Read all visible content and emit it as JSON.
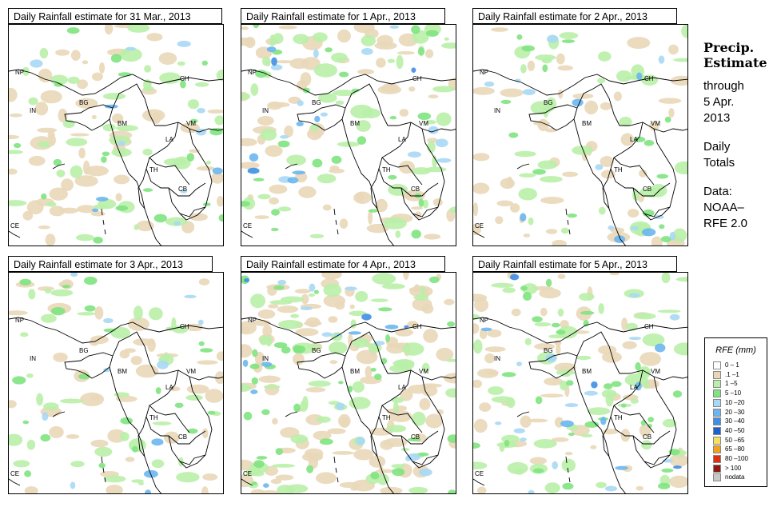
{
  "panels": [
    {
      "title": "Daily Rainfall estimate for  31 Mar., 2013"
    },
    {
      "title": "Daily Rainfall estimate for  1 Apr., 2013"
    },
    {
      "title": "Daily Rainfall estimate for  2 Apr., 2013"
    },
    {
      "title": "Daily Rainfall estimate for  3 Apr., 2013"
    },
    {
      "title": "Daily Rainfall estimate for  4 Apr., 2013"
    },
    {
      "title": "Daily Rainfall estimate for  5 Apr., 2013"
    }
  ],
  "labels": {
    "NP": "NP",
    "CH": "CH",
    "IN": "IN",
    "BG": "BG",
    "BM": "BM",
    "VM": "VM",
    "LA": "LA",
    "TH": "TH",
    "CB": "CB",
    "CE": "CE"
  },
  "side": {
    "title1": "Precip.",
    "title2": "Estimate",
    "through": "through",
    "date1": "5 Apr.",
    "date2": "2013",
    "daily1": "Daily",
    "daily2": "Totals",
    "data1": "Data:",
    "data2": "NOAA–",
    "data3": "RFE 2.0"
  },
  "legend": {
    "title": "RFE (mm)",
    "items": [
      {
        "label": "0 – 1",
        "color": "#ffffff"
      },
      {
        "label": ".1 –1",
        "color": "#e9d7b8"
      },
      {
        "label": "1 –5",
        "color": "#b9efa8"
      },
      {
        "label": "5 –10",
        "color": "#7fe37f"
      },
      {
        "label": "10 –20",
        "color": "#a9d8f5"
      },
      {
        "label": "20 –30",
        "color": "#6bb6ee"
      },
      {
        "label": "30 –40",
        "color": "#3f8fe6"
      },
      {
        "label": "40 –50",
        "color": "#1f5fd0"
      },
      {
        "label": "50 –65",
        "color": "#f7e060"
      },
      {
        "label": "65 –80",
        "color": "#f4a21c"
      },
      {
        "label": "80 –100",
        "color": "#e03010"
      },
      {
        "label": "> 100",
        "color": "#8c1a10"
      },
      {
        "label": "nodata",
        "color": "#c8c8c8"
      }
    ]
  }
}
